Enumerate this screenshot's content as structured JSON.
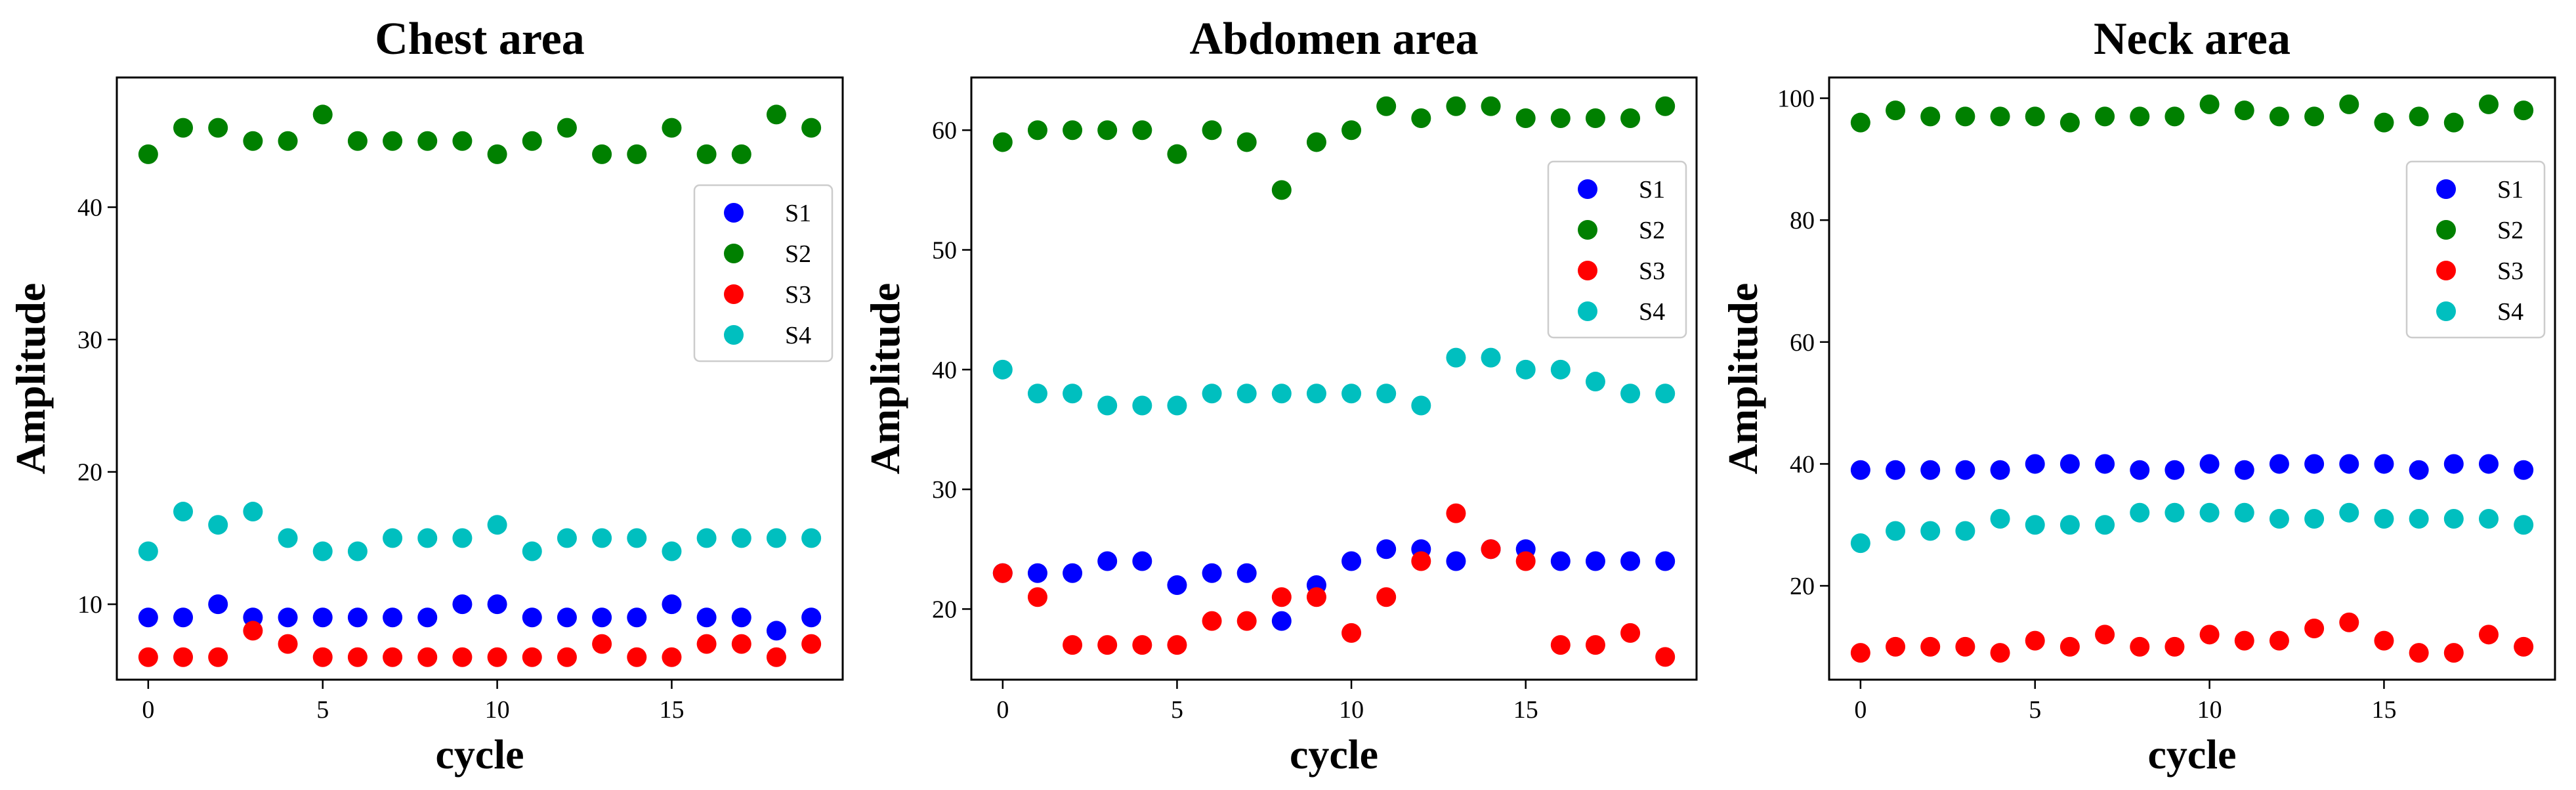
{
  "chart_data": [
    {
      "type": "scatter",
      "title": "Chest area",
      "xlabel": "cycle",
      "ylabel": "Amplitude",
      "xlim": [
        -0.9,
        19.9
      ],
      "ylim": [
        4.3,
        49.8
      ],
      "xticks": [
        0,
        5,
        10,
        15
      ],
      "yticks": [
        10,
        20,
        30,
        40
      ],
      "legend": "center-right",
      "x": [
        0,
        1,
        2,
        3,
        4,
        5,
        6,
        7,
        8,
        9,
        10,
        11,
        12,
        13,
        14,
        15,
        16,
        17,
        18,
        19
      ],
      "series": [
        {
          "name": "S1",
          "color": "#0000ff",
          "values": [
            9,
            9,
            10,
            9,
            9,
            9,
            9,
            9,
            9,
            10,
            10,
            9,
            9,
            9,
            9,
            10,
            9,
            9,
            8,
            9
          ]
        },
        {
          "name": "S2",
          "color": "#008000",
          "values": [
            44,
            46,
            46,
            45,
            45,
            47,
            45,
            45,
            45,
            45,
            44,
            45,
            46,
            44,
            44,
            46,
            44,
            44,
            47,
            46
          ]
        },
        {
          "name": "S3",
          "color": "#ff0000",
          "values": [
            6,
            6,
            6,
            8,
            7,
            6,
            6,
            6,
            6,
            6,
            6,
            6,
            6,
            7,
            6,
            6,
            7,
            7,
            6,
            7
          ]
        },
        {
          "name": "S4",
          "color": "#00bfbf",
          "values": [
            14,
            17,
            16,
            17,
            15,
            14,
            14,
            15,
            15,
            15,
            16,
            14,
            15,
            15,
            15,
            14,
            15,
            15,
            15,
            15
          ]
        }
      ]
    },
    {
      "type": "scatter",
      "title": "Abdomen area",
      "xlabel": "cycle",
      "ylabel": "Amplitude",
      "xlim": [
        -0.9,
        19.9
      ],
      "ylim": [
        14.1,
        64.4
      ],
      "xticks": [
        0,
        5,
        10,
        15
      ],
      "yticks": [
        20,
        30,
        40,
        50,
        60
      ],
      "legend": "upper-right",
      "x": [
        0,
        1,
        2,
        3,
        4,
        5,
        6,
        7,
        8,
        9,
        10,
        11,
        12,
        13,
        14,
        15,
        16,
        17,
        18,
        19
      ],
      "series": [
        {
          "name": "S1",
          "color": "#0000ff",
          "values": [
            23,
            23,
            23,
            24,
            24,
            22,
            23,
            23,
            19,
            22,
            24,
            25,
            25,
            24,
            25,
            25,
            24,
            24,
            24,
            24
          ]
        },
        {
          "name": "S2",
          "color": "#008000",
          "values": [
            59,
            60,
            60,
            60,
            60,
            58,
            60,
            59,
            55,
            59,
            60,
            62,
            61,
            62,
            62,
            61,
            61,
            61,
            61,
            62
          ]
        },
        {
          "name": "S3",
          "color": "#ff0000",
          "values": [
            23,
            21,
            17,
            17,
            17,
            17,
            19,
            19,
            21,
            21,
            18,
            21,
            24,
            28,
            25,
            24,
            17,
            17,
            18,
            16
          ]
        },
        {
          "name": "S4",
          "color": "#00bfbf",
          "values": [
            40,
            38,
            38,
            37,
            37,
            37,
            38,
            38,
            38,
            38,
            38,
            38,
            37,
            41,
            41,
            40,
            40,
            39,
            38,
            38
          ]
        }
      ]
    },
    {
      "type": "scatter",
      "title": "Neck area",
      "xlabel": "cycle",
      "ylabel": "Amplitude",
      "xlim": [
        -0.9,
        19.9
      ],
      "ylim": [
        4.6,
        103.4
      ],
      "xticks": [
        0,
        5,
        10,
        15
      ],
      "yticks": [
        20,
        40,
        60,
        80,
        100
      ],
      "legend": "upper-right",
      "x": [
        0,
        1,
        2,
        3,
        4,
        5,
        6,
        7,
        8,
        9,
        10,
        11,
        12,
        13,
        14,
        15,
        16,
        17,
        18,
        19
      ],
      "series": [
        {
          "name": "S1",
          "color": "#0000ff",
          "values": [
            39,
            39,
            39,
            39,
            39,
            40,
            40,
            40,
            39,
            39,
            40,
            39,
            40,
            40,
            40,
            40,
            39,
            40,
            40,
            39
          ]
        },
        {
          "name": "S2",
          "color": "#008000",
          "values": [
            96,
            98,
            97,
            97,
            97,
            97,
            96,
            97,
            97,
            97,
            99,
            98,
            97,
            97,
            99,
            96,
            97,
            96,
            99,
            98
          ]
        },
        {
          "name": "S3",
          "color": "#ff0000",
          "values": [
            9,
            10,
            10,
            10,
            9,
            11,
            10,
            12,
            10,
            10,
            12,
            11,
            11,
            13,
            14,
            11,
            9,
            9,
            12,
            10
          ]
        },
        {
          "name": "S4",
          "color": "#00bfbf",
          "values": [
            27,
            29,
            29,
            29,
            31,
            30,
            30,
            30,
            32,
            32,
            32,
            32,
            31,
            31,
            32,
            31,
            31,
            31,
            31,
            30
          ]
        }
      ]
    }
  ]
}
